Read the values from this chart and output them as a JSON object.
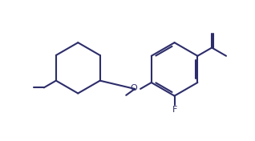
{
  "bg_color": "#ffffff",
  "line_color": "#2d2d6b",
  "line_width": 1.5,
  "figure_width": 3.18,
  "figure_height": 1.76,
  "dpi": 100,
  "xlim": [
    0,
    10
  ],
  "ylim": [
    0,
    5.5
  ]
}
